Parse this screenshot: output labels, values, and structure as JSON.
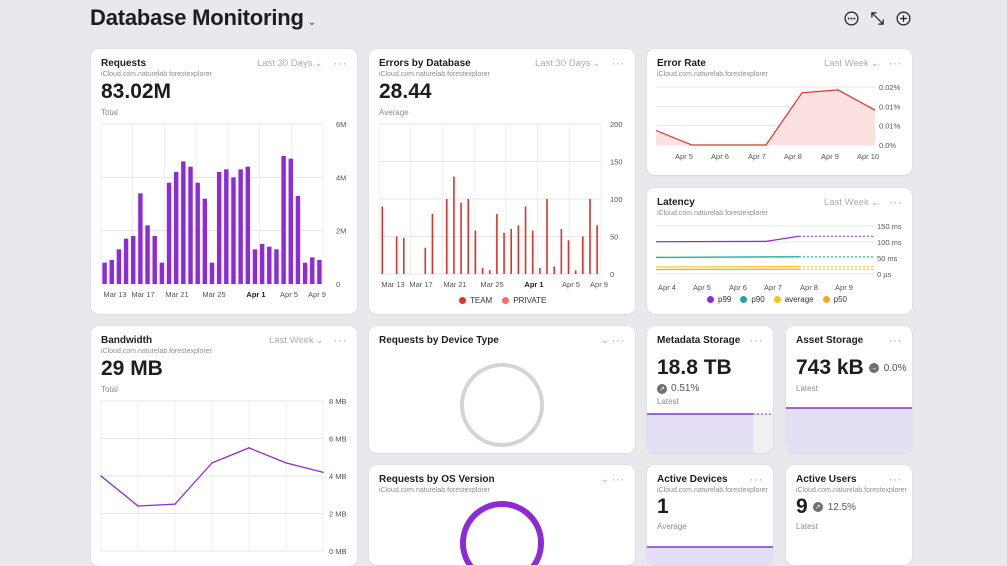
{
  "header": {
    "title": "Database Monitoring"
  },
  "container_id": "iCloud.com.naturelab.forestexplorer",
  "requests": {
    "title": "Requests",
    "range": "Last 30 Days",
    "value": "83.02M",
    "value_label": "Total",
    "y_ticks": [
      "6M",
      "4M",
      "2M",
      "0"
    ],
    "x_ticks": [
      "Mar 13",
      "Mar 17",
      "Mar 21",
      "Mar 25",
      "Apr 1",
      "Apr 5",
      "Apr 9"
    ],
    "bar_values_m": [
      0.8,
      0.9,
      1.3,
      1.7,
      1.8,
      3.4,
      2.2,
      1.8,
      0.8,
      3.8,
      4.2,
      4.6,
      4.4,
      3.8,
      3.2,
      0.8,
      4.2,
      4.3,
      4.0,
      4.3,
      4.4,
      1.3,
      1.5,
      1.4,
      1.3,
      4.8,
      4.7,
      3.3,
      0.8,
      1.0,
      0.9
    ]
  },
  "errors": {
    "title": "Errors by Database",
    "range": "Last 30 Days",
    "value": "28.44",
    "value_label": "Average",
    "y_ticks": [
      "200",
      "150",
      "100",
      "50",
      "0"
    ],
    "x_ticks": [
      "Mar 13",
      "Mar 17",
      "Mar 21",
      "Mar 25",
      "Apr 1",
      "Apr 5",
      "Apr 9"
    ],
    "legend": [
      {
        "label": "TEAM",
        "color": "#e0312a"
      },
      {
        "label": "PRIVATE",
        "color": "#ff6b64"
      }
    ],
    "team_values": [
      90,
      0,
      50,
      48,
      0,
      0,
      35,
      80,
      0,
      100,
      130,
      95,
      100,
      58,
      8,
      5,
      80,
      55,
      60,
      65,
      90,
      58,
      8,
      100,
      10,
      60,
      45,
      5,
      50,
      100,
      65
    ],
    "private_values": [
      0,
      0,
      0,
      0,
      0,
      0,
      0,
      0,
      0,
      0,
      0,
      0,
      0,
      0,
      0,
      0,
      0,
      0,
      0,
      0,
      0,
      0,
      0,
      0,
      0,
      0,
      0,
      0,
      0,
      0,
      0
    ]
  },
  "error_rate": {
    "title": "Error Rate",
    "range": "Last Week",
    "y_ticks": [
      "0.02%",
      "0.01%",
      "0.01%",
      "0.0%"
    ],
    "x_ticks": [
      "Apr 5",
      "Apr 6",
      "Apr 7",
      "Apr 8",
      "Apr 9",
      "Apr 10"
    ],
    "values_pct": [
      0.005,
      0.0,
      0.0,
      0.015,
      0.019,
      0.012
    ]
  },
  "latency": {
    "title": "Latency",
    "range": "Last Week",
    "y_ticks": [
      "150 ms",
      "100 ms",
      "50 ms",
      "0 µs"
    ],
    "x_ticks": [
      "Apr 4",
      "Apr 5",
      "Apr 6",
      "Apr 7",
      "Apr 8",
      "Apr 9"
    ],
    "legend": [
      {
        "label": "p99",
        "color": "#8e2bd6"
      },
      {
        "label": "p90",
        "color": "#22a79a"
      },
      {
        "label": "average",
        "color": "#f5c518"
      },
      {
        "label": "p50",
        "color": "#f5a623"
      }
    ]
  },
  "bandwidth": {
    "title": "Bandwidth",
    "range": "Last Week",
    "value": "29 MB",
    "value_label": "Total",
    "y_ticks": [
      "8 MB",
      "6 MB",
      "4 MB",
      "2 MB",
      "0 MB"
    ],
    "values_mb": [
      4.0,
      2.4,
      2.5,
      4.7,
      5.5,
      4.7,
      4.2
    ]
  },
  "device_type": {
    "title": "Requests by Device Type"
  },
  "os_version": {
    "title": "Requests by OS Version"
  },
  "metadata_storage": {
    "title": "Metadata Storage",
    "value": "18.8 TB",
    "delta": "0.51%",
    "label": "Latest"
  },
  "asset_storage": {
    "title": "Asset Storage",
    "value": "743 kB",
    "delta": "0.0%",
    "label": "Latest"
  },
  "active_devices": {
    "title": "Active Devices",
    "value": "1",
    "label": "Average"
  },
  "active_users": {
    "title": "Active Users",
    "value": "9",
    "delta": "12.5%",
    "label": "Latest"
  }
}
